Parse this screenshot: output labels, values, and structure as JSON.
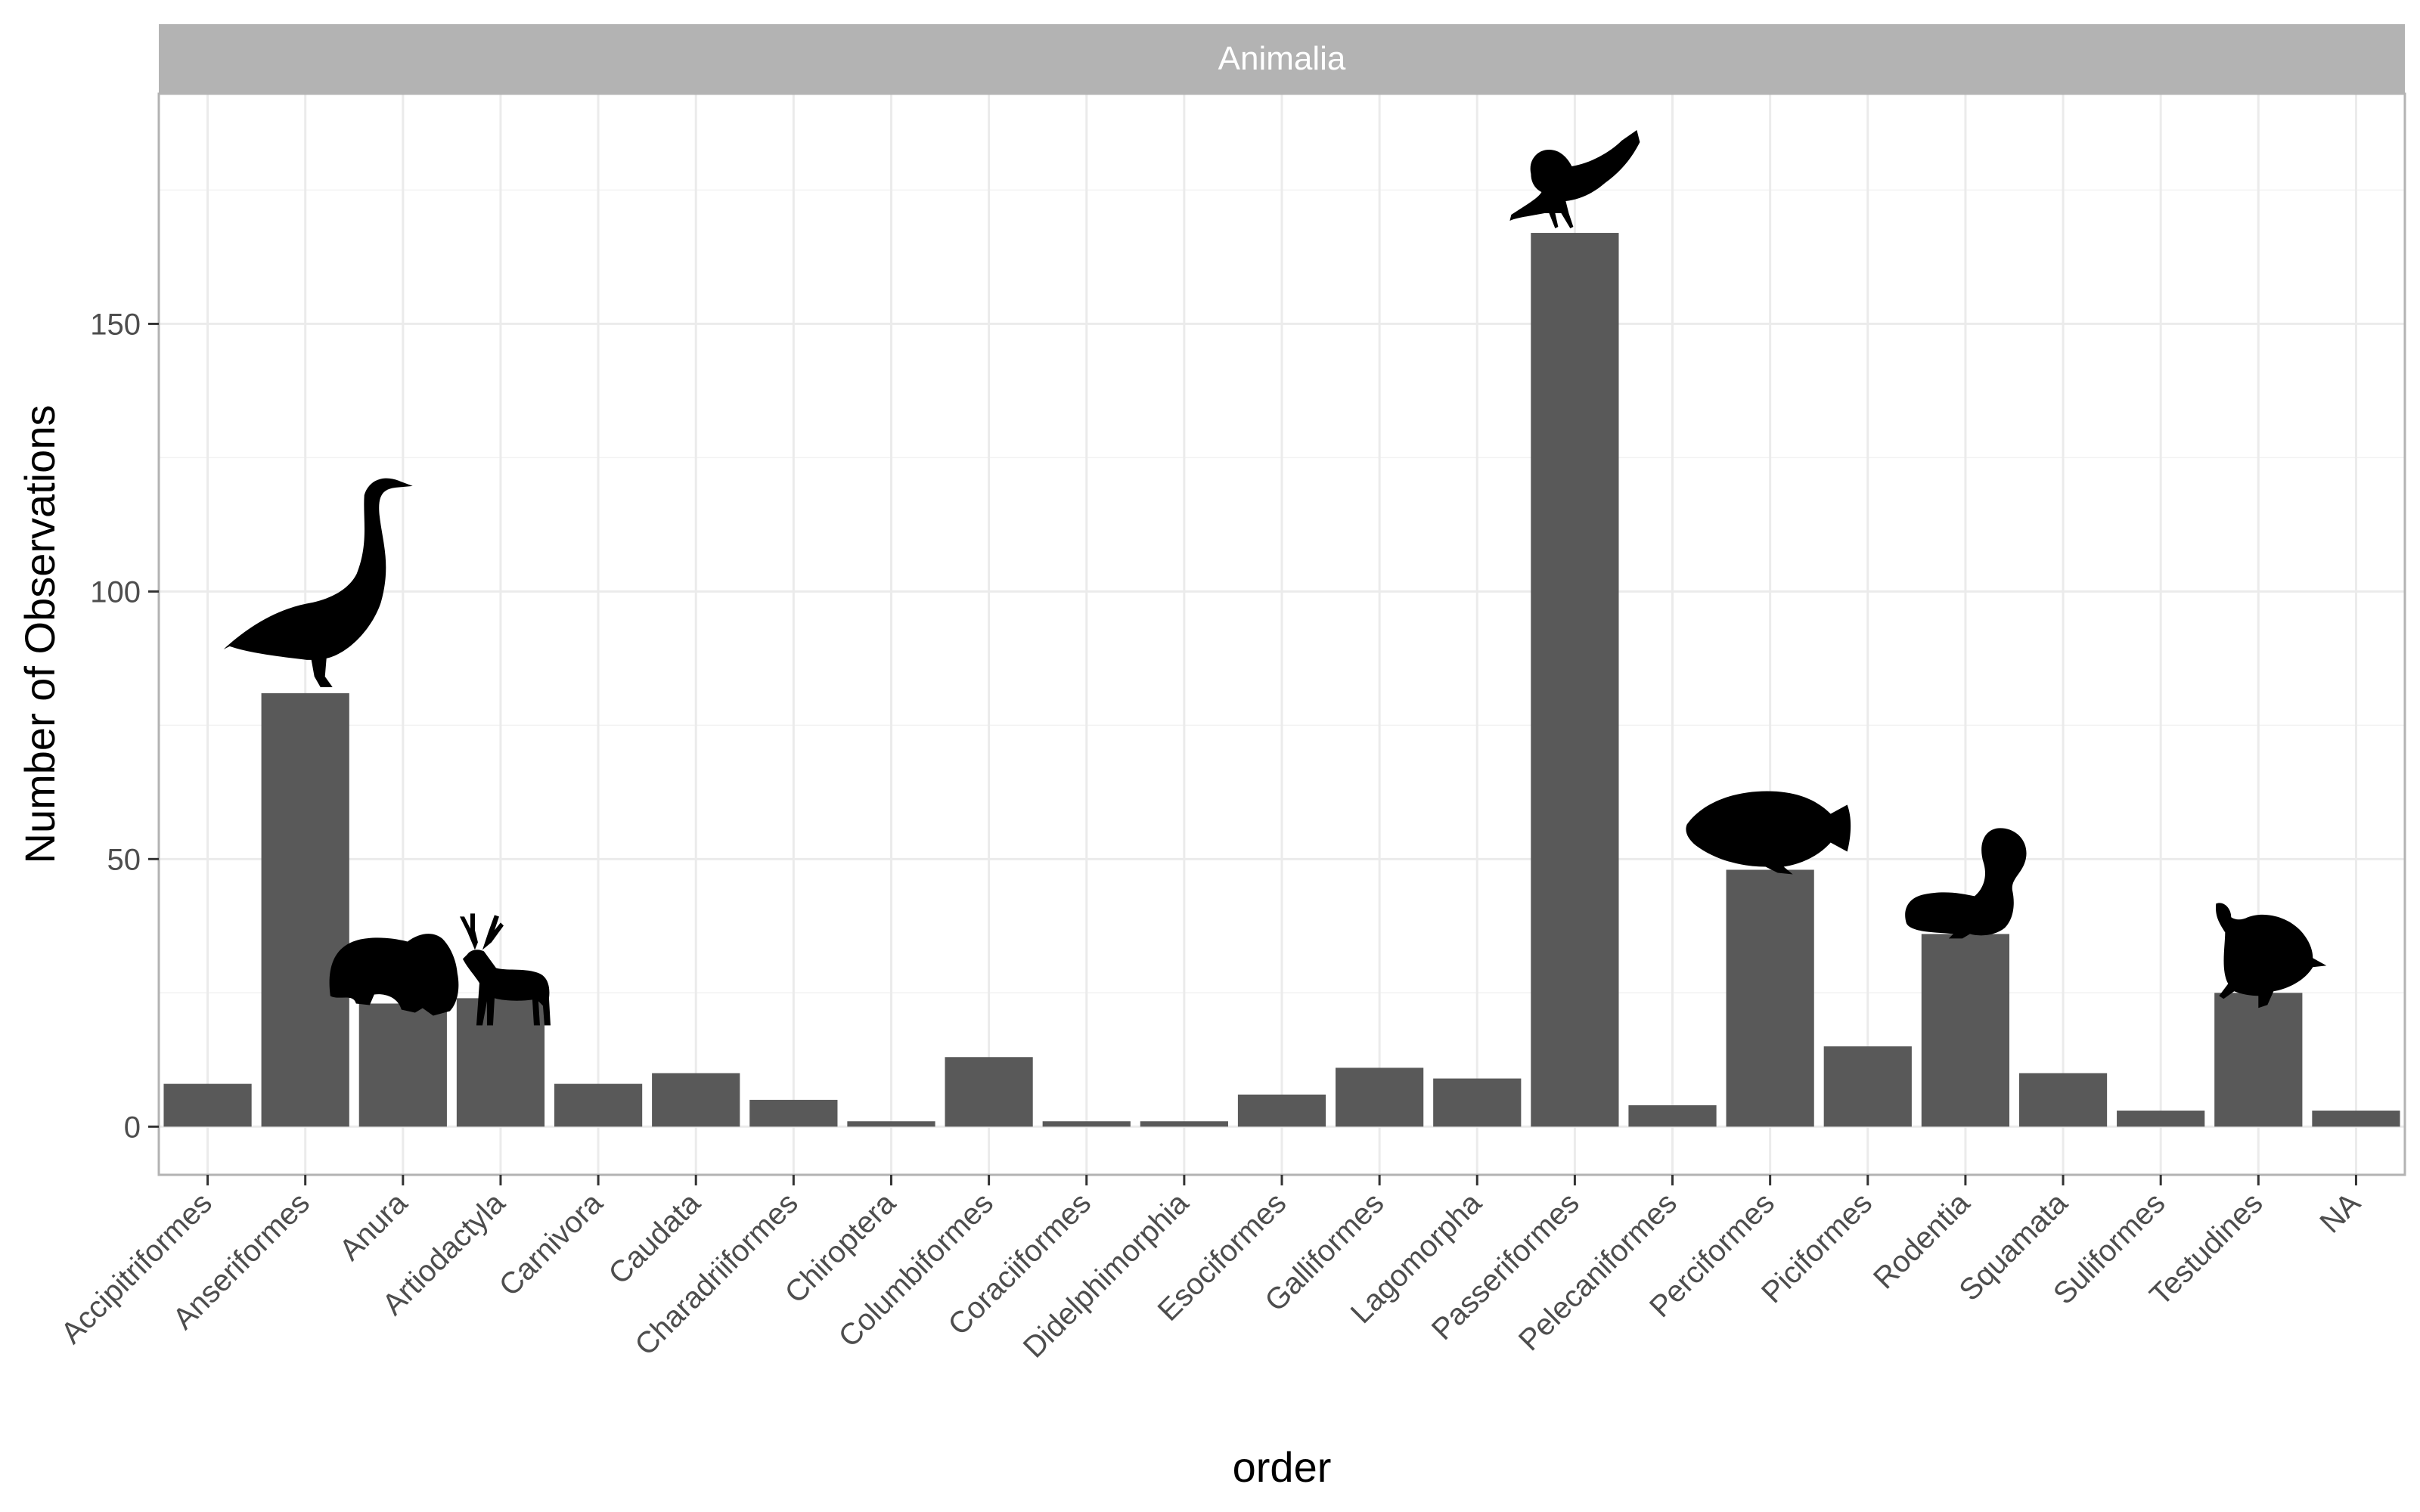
{
  "chart_data": {
    "type": "bar",
    "facet": "Animalia",
    "xlabel": "order",
    "ylabel": "Number of Observations",
    "categories": [
      "Accipitriformes",
      "Anseriformes",
      "Anura",
      "Artiodactyla",
      "Carnivora",
      "Caudata",
      "Charadriiformes",
      "Chiroptera",
      "Columbiformes",
      "Coraciiformes",
      "Didelphimorphia",
      "Esociformes",
      "Galliformes",
      "Lagomorpha",
      "Passeriformes",
      "Pelecaniformes",
      "Perciformes",
      "Piciformes",
      "Rodentia",
      "Squamata",
      "Suliformes",
      "Testudines",
      "NA"
    ],
    "values": [
      8,
      81,
      23,
      24,
      8,
      10,
      5,
      1,
      13,
      1,
      1,
      6,
      11,
      9,
      167,
      4,
      48,
      15,
      36,
      10,
      3,
      25,
      3
    ],
    "ylim": [
      -9,
      193
    ],
    "yticks": [
      0,
      50,
      100,
      150
    ],
    "grid": true,
    "silhouettes": [
      {
        "category": "Anseriformes",
        "icon": "goose-icon"
      },
      {
        "category": "Anura",
        "icon": "frog-icon"
      },
      {
        "category": "Artiodactyla",
        "icon": "deer-icon"
      },
      {
        "category": "Passeriformes",
        "icon": "songbird-icon"
      },
      {
        "category": "Perciformes",
        "icon": "fish-icon"
      },
      {
        "category": "Rodentia",
        "icon": "squirrel-icon"
      },
      {
        "category": "Testudines",
        "icon": "turtle-icon"
      }
    ],
    "colors": {
      "bar": "#595959",
      "strip": "#b3b3b3",
      "grid": "#ebebeb",
      "panel_border": "#b3b3b3"
    }
  }
}
